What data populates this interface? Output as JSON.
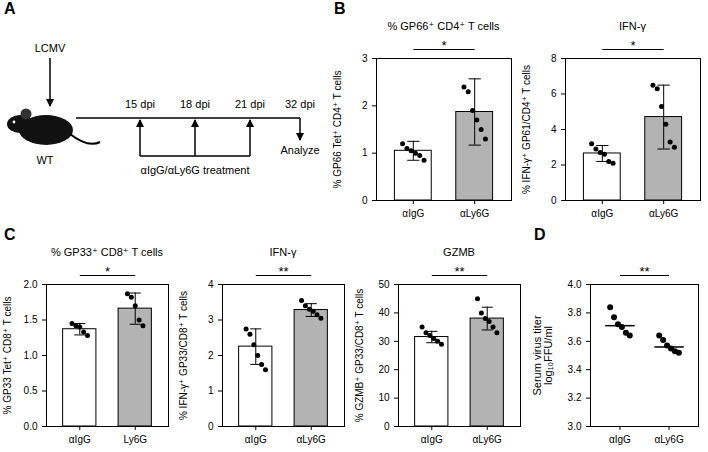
{
  "diagram": {
    "panel": "A",
    "infection": "LCMV",
    "mouse": "WT",
    "timepoints": [
      "15 dpi",
      "18 dpi",
      "21 dpi",
      "32 dpi"
    ],
    "treatment": "αIgG/αLy6G treatment",
    "endpoint": "Analyze"
  },
  "chart_data": [
    {
      "panel": "B",
      "type": "bar",
      "title": "% GP66⁺ CD4⁺ T cells",
      "ylabel": "% GP66 Tet⁺ CD4⁺ T cells",
      "categories": [
        "αIgG",
        "αLy6G"
      ],
      "values": [
        1.05,
        1.87
      ],
      "errors": [
        0.2,
        0.7
      ],
      "points": [
        [
          1.2,
          1.1,
          1.05,
          1.0,
          0.95,
          0.85
        ],
        [
          2.4,
          2.3,
          1.9,
          1.7,
          1.5,
          1.3
        ]
      ],
      "colors": [
        "#ffffff",
        "#b3b3b3"
      ],
      "ylim": [
        0,
        3
      ],
      "yticks": [
        0,
        1,
        2,
        3
      ],
      "annotation": "*"
    },
    {
      "panel": "B",
      "type": "bar",
      "title": "IFN-γ",
      "ylabel": "% IFN-γ⁺ GP61/CD4⁺ T cells",
      "categories": [
        "αIgG",
        "αLy6G"
      ],
      "values": [
        2.65,
        4.7
      ],
      "errors": [
        0.45,
        1.8
      ],
      "points": [
        [
          3.2,
          2.9,
          2.7,
          2.6,
          2.2,
          2.1
        ],
        [
          6.5,
          6.3,
          5.3,
          4.3,
          3.3,
          3.0
        ]
      ],
      "colors": [
        "#ffffff",
        "#b3b3b3"
      ],
      "ylim": [
        0,
        8
      ],
      "yticks": [
        0,
        2,
        4,
        6,
        8
      ],
      "annotation": "*"
    },
    {
      "panel": "C",
      "type": "bar",
      "title": "% GP33⁺ CD8⁺ T cells",
      "ylabel": "% GP33 Tet⁺ CD8⁺ T cells",
      "categories": [
        "αIgG",
        "Ly6G"
      ],
      "values": [
        1.37,
        1.66
      ],
      "errors": [
        0.08,
        0.22
      ],
      "points": [
        [
          1.45,
          1.42,
          1.4,
          1.33,
          1.28
        ],
        [
          1.87,
          1.82,
          1.7,
          1.5,
          1.42
        ]
      ],
      "colors": [
        "#ffffff",
        "#b3b3b3"
      ],
      "ylim": [
        0,
        2
      ],
      "yticks": [
        {
          "value": 0,
          "label": "0.0"
        },
        0.5,
        {
          "value": 1,
          "label": "1.0"
        },
        1.5,
        {
          "value": 2,
          "label": "2.0"
        }
      ],
      "annotation": "*"
    },
    {
      "panel": "C",
      "type": "bar",
      "title": "IFN-γ",
      "ylabel": "% IFN-γ⁺ GP33/CD8⁺ T cells",
      "categories": [
        "αIgG",
        "αLy6G"
      ],
      "values": [
        2.25,
        3.28
      ],
      "errors": [
        0.5,
        0.18
      ],
      "points": [
        [
          2.75,
          2.6,
          2.3,
          2.0,
          1.75,
          1.6
        ],
        [
          3.55,
          3.4,
          3.3,
          3.25,
          3.15,
          3.05
        ]
      ],
      "colors": [
        "#ffffff",
        "#b3b3b3"
      ],
      "ylim": [
        0,
        4
      ],
      "yticks": [
        0,
        1,
        2,
        3,
        4
      ],
      "annotation": "**"
    },
    {
      "panel": "C",
      "type": "bar",
      "title": "GZMB",
      "ylabel": "% GZMB⁺ GP33/CD8⁺ T cells",
      "categories": [
        "αIgG",
        "αLy6G"
      ],
      "values": [
        31.5,
        38
      ],
      "errors": [
        2,
        4
      ],
      "points": [
        [
          35,
          33,
          32,
          31,
          30,
          29
        ],
        [
          45,
          40,
          38,
          37,
          35,
          33
        ]
      ],
      "colors": [
        "#ffffff",
        "#b3b3b3"
      ],
      "ylim": [
        0,
        50
      ],
      "yticks": [
        0,
        10,
        20,
        30,
        40,
        50
      ],
      "annotation": "**"
    },
    {
      "panel": "D",
      "type": "scatter",
      "ylabel": "Serum virus titer\nlog₁₀FFU/ml",
      "categories": [
        "αIgG",
        "αLy6G"
      ],
      "values": [
        3.71,
        3.56
      ],
      "points": [
        [
          3.84,
          3.77,
          3.72,
          3.7,
          3.66,
          3.64
        ],
        [
          3.64,
          3.61,
          3.57,
          3.55,
          3.53,
          3.52
        ]
      ],
      "color": "#000000",
      "ylim": [
        3,
        4
      ],
      "yticks": [
        {
          "value": 3,
          "label": "3.0"
        },
        3.2,
        3.4,
        3.6,
        3.8,
        {
          "value": 4,
          "label": "4.0"
        }
      ],
      "annotation": "**"
    }
  ]
}
